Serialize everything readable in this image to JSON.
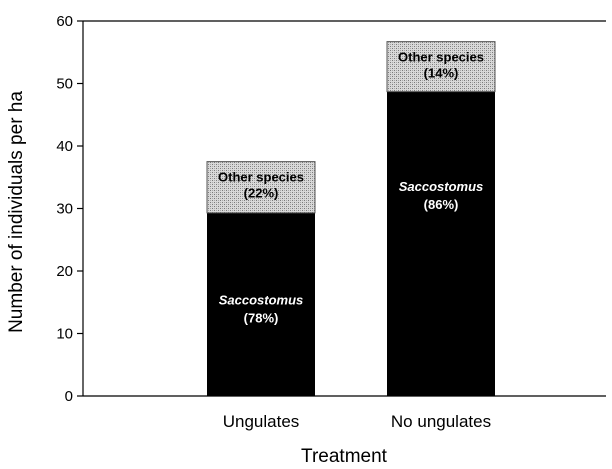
{
  "chart_data": {
    "type": "bar",
    "stacked": true,
    "title": "",
    "xlabel": "Treatment",
    "ylabel": "Number of individuals per ha",
    "ylim": [
      0,
      60
    ],
    "yticks": [
      0,
      10,
      20,
      30,
      40,
      50,
      60
    ],
    "categories": [
      "Ungulates",
      "No ungulates"
    ],
    "series": [
      {
        "name": "Saccostomus",
        "values": [
          29.3,
          48.7
        ],
        "color": "#000000",
        "labels": [
          {
            "name": "Saccostomus",
            "pct": "(78%)"
          },
          {
            "name": "Saccostomus",
            "pct": "(86%)"
          }
        ]
      },
      {
        "name": "Other species",
        "values": [
          8.2,
          8.0
        ],
        "color": "#c8c8c8",
        "labels": [
          {
            "name": "Other species",
            "pct": "(22%)"
          },
          {
            "name": "Other species",
            "pct": "(14%)"
          }
        ]
      }
    ],
    "grid": false,
    "legend": "none"
  }
}
